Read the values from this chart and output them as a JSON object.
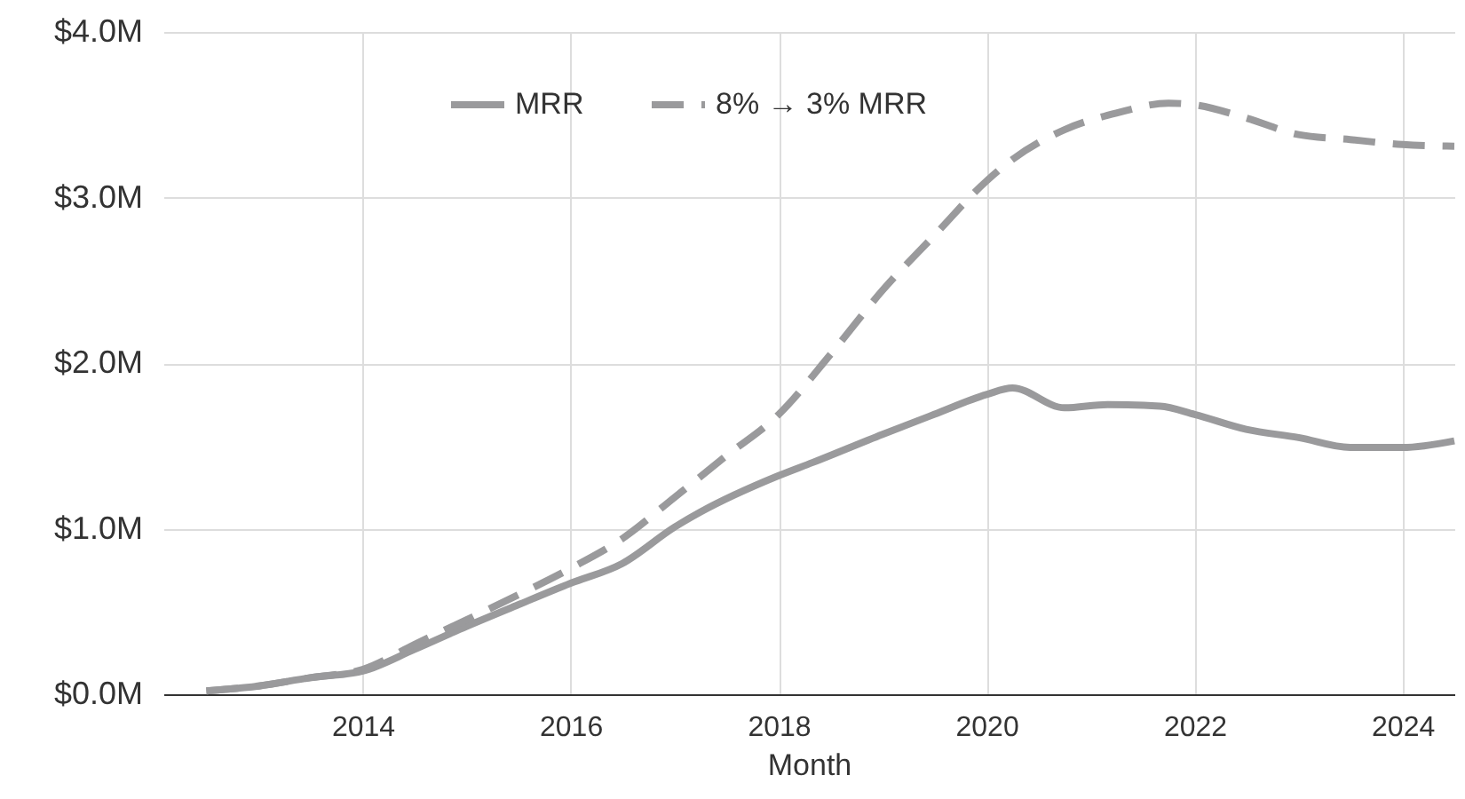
{
  "chart_data": {
    "type": "line",
    "xlabel": "Month",
    "xlim": [
      "2012-02",
      "2024-07"
    ],
    "ylim": [
      0,
      4
    ],
    "xticks": [
      "2014",
      "2016",
      "2018",
      "2020",
      "2022",
      "2024"
    ],
    "yticks": [
      {
        "value": 0,
        "label": "$0.0M"
      },
      {
        "value": 1,
        "label": "$1.0M"
      },
      {
        "value": 2,
        "label": "$2.0M"
      },
      {
        "value": 3,
        "label": "$3.0M"
      },
      {
        "value": 4,
        "label": "$4.0M"
      }
    ],
    "grid": true,
    "legend": "top",
    "marker": "none",
    "series": [
      {
        "name": "MRR",
        "color": "#9a9a9c",
        "line_style": "solid",
        "x": [
          "2012-07",
          "2013-01",
          "2013-07",
          "2014-01",
          "2014-07",
          "2015-01",
          "2015-07",
          "2016-01",
          "2016-07",
          "2017-01",
          "2017-04",
          "2018-01",
          "2018-05",
          "2019-01",
          "2019-07",
          "2020-01",
          "2020-04",
          "2020-10",
          "2021-03",
          "2021-09",
          "2022-01",
          "2022-07",
          "2023-01",
          "2023-07",
          "2024-01",
          "2024-07"
        ],
        "values": [
          0.02,
          0.05,
          0.1,
          0.14,
          0.27,
          0.41,
          0.54,
          0.67,
          0.79,
          1.01,
          1.1,
          1.32,
          1.4,
          1.57,
          1.69,
          1.81,
          1.85,
          1.73,
          1.75,
          1.74,
          1.69,
          1.6,
          1.55,
          1.49,
          1.49,
          1.53
        ]
      },
      {
        "name": "8% → 3% MRR",
        "color": "#9a9a9c",
        "line_style": "dashed",
        "x": [
          "2012-07",
          "2013-01",
          "2013-07",
          "2014-01",
          "2014-07",
          "2015-01",
          "2015-07",
          "2016-01",
          "2016-07",
          "2017-01",
          "2017-07",
          "2018-01",
          "2018-07",
          "2019-01",
          "2019-07",
          "2020-01",
          "2020-04",
          "2020-10",
          "2021-04",
          "2021-10",
          "2022-01",
          "2022-07",
          "2023-01",
          "2023-07",
          "2024-01",
          "2024-07"
        ],
        "values": [
          0.02,
          0.05,
          0.1,
          0.15,
          0.3,
          0.45,
          0.6,
          0.76,
          0.94,
          1.19,
          1.44,
          1.69,
          2.05,
          2.44,
          2.77,
          3.1,
          3.23,
          3.41,
          3.51,
          3.57,
          3.56,
          3.48,
          3.38,
          3.35,
          3.32,
          3.31
        ]
      }
    ]
  }
}
